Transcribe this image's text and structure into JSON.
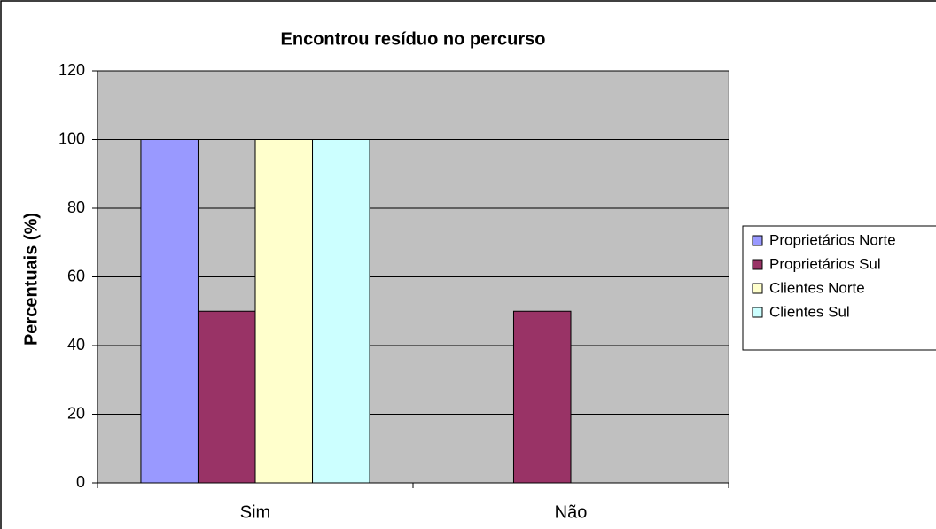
{
  "chart_data": {
    "type": "bar",
    "title": "Encontrou resíduo no percurso",
    "y_label": "Percentuais (%)",
    "categories": [
      "Sim",
      "Não"
    ],
    "series": [
      {
        "name": "Proprietários Norte",
        "color": "#9999ff",
        "values": [
          100,
          0
        ]
      },
      {
        "name": "Proprietários Sul",
        "color": "#993366",
        "values": [
          50,
          50
        ]
      },
      {
        "name": "Clientes Norte",
        "color": "#ffffcc",
        "values": [
          100,
          0
        ]
      },
      {
        "name": "Clientes Sul",
        "color": "#ccffff",
        "values": [
          100,
          0
        ]
      }
    ],
    "ylim": [
      0,
      120
    ],
    "yticks": [
      0,
      20,
      40,
      60,
      80,
      100,
      120
    ],
    "grid": true,
    "legend": "right"
  }
}
